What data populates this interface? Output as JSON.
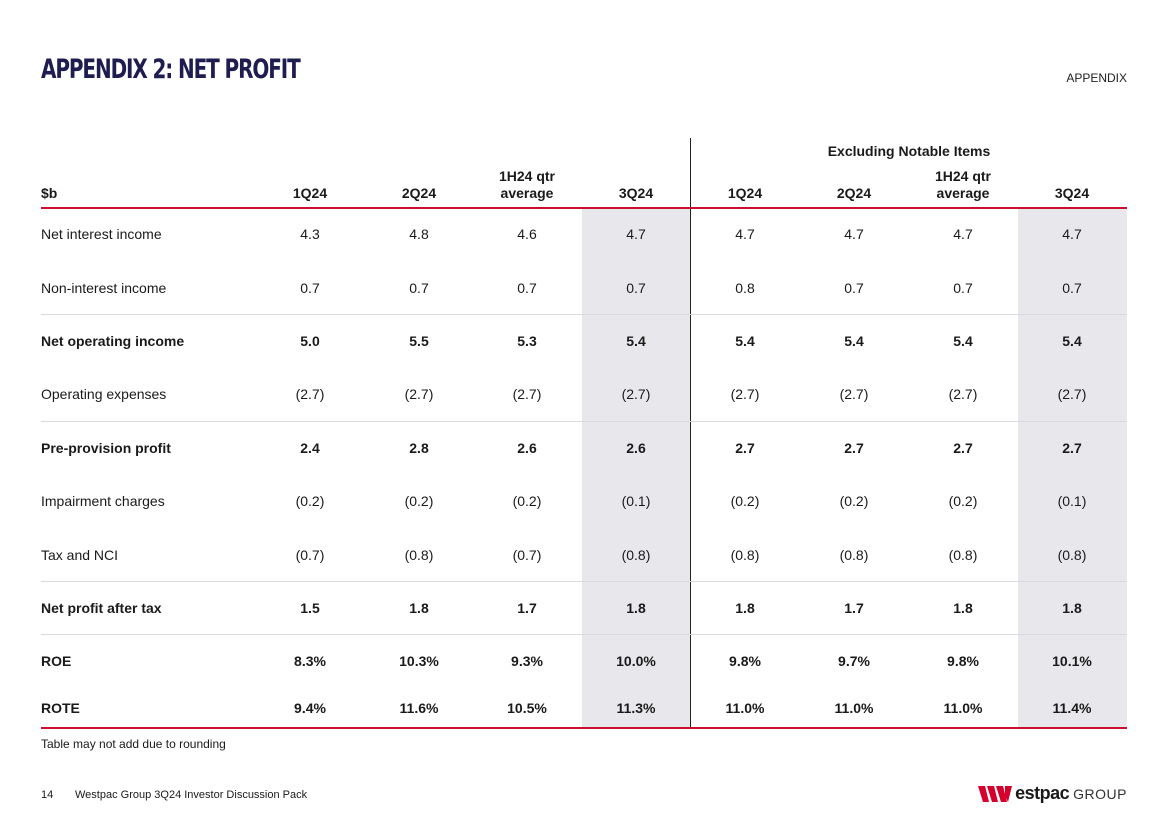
{
  "page": {
    "title": "APPENDIX 2: NET PROFIT",
    "section_label": "APPENDIX",
    "note": "Table may not add due to rounding",
    "footer": {
      "page_number": "14",
      "text": "Westpac Group 3Q24 Investor Discussion Pack"
    },
    "logo": {
      "word": "estpac",
      "suffix": "GROUP"
    }
  },
  "table": {
    "unit": "$b",
    "group_header": "Excluding Notable Items",
    "columns": [
      {
        "line1": "",
        "line2": "1Q24"
      },
      {
        "line1": "",
        "line2": "2Q24"
      },
      {
        "line1": "1H24 qtr",
        "line2": "average"
      },
      {
        "line1": "",
        "line2": "3Q24"
      },
      {
        "line1": "",
        "line2": "1Q24"
      },
      {
        "line1": "",
        "line2": "2Q24"
      },
      {
        "line1": "1H24 qtr",
        "line2": "average"
      },
      {
        "line1": "",
        "line2": "3Q24"
      }
    ],
    "rows": [
      {
        "label": "Net interest income",
        "values": [
          "4.3",
          "4.8",
          "4.6",
          "4.7",
          "4.7",
          "4.7",
          "4.7",
          "4.7"
        ]
      },
      {
        "label": "Non-interest income",
        "values": [
          "0.7",
          "0.7",
          "0.7",
          "0.7",
          "0.8",
          "0.7",
          "0.7",
          "0.7"
        ]
      },
      {
        "label": "Net operating income",
        "values": [
          "5.0",
          "5.5",
          "5.3",
          "5.4",
          "5.4",
          "5.4",
          "5.4",
          "5.4"
        ]
      },
      {
        "label": "Operating expenses",
        "values": [
          "(2.7)",
          "(2.7)",
          "(2.7)",
          "(2.7)",
          "(2.7)",
          "(2.7)",
          "(2.7)",
          "(2.7)"
        ]
      },
      {
        "label": "Pre-provision profit",
        "values": [
          "2.4",
          "2.8",
          "2.6",
          "2.6",
          "2.7",
          "2.7",
          "2.7",
          "2.7"
        ]
      },
      {
        "label": "Impairment charges",
        "values": [
          "(0.2)",
          "(0.2)",
          "(0.2)",
          "(0.1)",
          "(0.2)",
          "(0.2)",
          "(0.2)",
          "(0.1)"
        ]
      },
      {
        "label": "Tax and NCI",
        "values": [
          "(0.7)",
          "(0.8)",
          "(0.7)",
          "(0.8)",
          "(0.8)",
          "(0.8)",
          "(0.8)",
          "(0.8)"
        ]
      },
      {
        "label": "Net profit after tax",
        "values": [
          "1.5",
          "1.8",
          "1.7",
          "1.8",
          "1.8",
          "1.7",
          "1.8",
          "1.8"
        ]
      },
      {
        "label": "ROE",
        "values": [
          "8.3%",
          "10.3%",
          "9.3%",
          "10.0%",
          "9.8%",
          "9.7%",
          "9.8%",
          "10.1%"
        ]
      },
      {
        "label": "ROTE",
        "values": [
          "9.4%",
          "11.6%",
          "10.5%",
          "11.3%",
          "11.0%",
          "11.0%",
          "11.0%",
          "11.4%"
        ]
      }
    ]
  },
  "colors": {
    "title": "#1f1c4f",
    "accent_red": "#c8102e",
    "shade": "#e8e7ec"
  }
}
